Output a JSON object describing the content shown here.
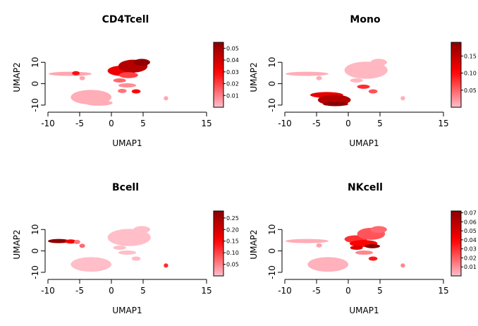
{
  "chart_data": [
    {
      "type": "scatter",
      "title": "CD4Tcell",
      "xlabel": "UMAP1",
      "ylabel": "UMAP2",
      "xlim": [
        -10,
        15
      ],
      "ylim": [
        -12,
        18
      ],
      "xticks": [
        "-10",
        "-5",
        "0",
        "5",
        "15"
      ],
      "xtick_values": [
        -10,
        -5,
        0,
        5,
        15
      ],
      "yticks": [
        "-10",
        "0",
        "10"
      ],
      "ytick_values": [
        -10,
        0,
        10
      ],
      "colorbar": {
        "min": 0,
        "max": 0.055,
        "ticks": [
          "0.01",
          "0.02",
          "0.03",
          "0.04",
          "0.05"
        ],
        "tick_values": [
          0.01,
          0.02,
          0.03,
          0.04,
          0.05
        ]
      },
      "color_low": "#ffc0cb",
      "color_high": "#8b0000",
      "clusters": [
        {
          "cx": -6.5,
          "cy": 4.6,
          "rx": 3.4,
          "ry": 0.6,
          "value": 0.004
        },
        {
          "cx": -5.6,
          "cy": 4.9,
          "rx": 0.6,
          "ry": 0.5,
          "value": 0.028
        },
        {
          "cx": -4.6,
          "cy": 2.6,
          "rx": 0.45,
          "ry": 0.45,
          "value": 0.004
        },
        {
          "cx": -3.2,
          "cy": -6.3,
          "rx": 3.2,
          "ry": 3.4,
          "value": 0.003
        },
        {
          "cx": -2.0,
          "cy": -9.0,
          "rx": 2.2,
          "ry": 1.3,
          "value": 0.003
        },
        {
          "cx": 1.6,
          "cy": 6.0,
          "rx": 2.2,
          "ry": 2.4,
          "value": 0.034
        },
        {
          "cx": 3.4,
          "cy": 8.2,
          "rx": 2.3,
          "ry": 3.0,
          "value": 0.046
        },
        {
          "cx": 4.8,
          "cy": 10.0,
          "rx": 1.3,
          "ry": 1.6,
          "value": 0.054
        },
        {
          "cx": 2.7,
          "cy": 4.0,
          "rx": 1.5,
          "ry": 1.4,
          "value": 0.02
        },
        {
          "cx": 1.3,
          "cy": 1.5,
          "rx": 1.0,
          "ry": 0.7,
          "value": 0.014
        },
        {
          "cx": 2.5,
          "cy": -0.8,
          "rx": 1.4,
          "ry": 0.7,
          "value": 0.008
        },
        {
          "cx": 1.7,
          "cy": -3.4,
          "rx": 0.7,
          "ry": 0.7,
          "value": 0.012
        },
        {
          "cx": 3.9,
          "cy": -3.6,
          "rx": 0.7,
          "ry": 0.7,
          "value": 0.03
        },
        {
          "cx": 8.6,
          "cy": -6.8,
          "rx": 0.35,
          "ry": 0.35,
          "value": 0.004
        }
      ]
    },
    {
      "type": "scatter",
      "title": "Mono",
      "xlabel": "UMAP1",
      "ylabel": "UMAP2",
      "xlim": [
        -10,
        15
      ],
      "ylim": [
        -12,
        18
      ],
      "xticks": [
        "-10",
        "-5",
        "0",
        "5",
        "15"
      ],
      "xtick_values": [
        -10,
        -5,
        0,
        5,
        15
      ],
      "yticks": [
        "-10",
        "0",
        "10"
      ],
      "ytick_values": [
        -10,
        0,
        10
      ],
      "colorbar": {
        "min": 0,
        "max": 0.19,
        "ticks": [
          "0.05",
          "0.10",
          "0.15"
        ],
        "tick_values": [
          0.05,
          0.1,
          0.15
        ]
      },
      "color_low": "#ffc0cb",
      "color_high": "#8b0000",
      "clusters": [
        {
          "cx": -6.5,
          "cy": 4.6,
          "rx": 3.4,
          "ry": 0.6,
          "value": 0.01
        },
        {
          "cx": -4.6,
          "cy": 2.6,
          "rx": 0.45,
          "ry": 0.45,
          "value": 0.01
        },
        {
          "cx": -3.4,
          "cy": -5.3,
          "rx": 2.6,
          "ry": 1.4,
          "value": 0.12
        },
        {
          "cx": -2.2,
          "cy": -7.6,
          "rx": 2.6,
          "ry": 2.4,
          "value": 0.16
        },
        {
          "cx": -2.0,
          "cy": -9.5,
          "rx": 2.0,
          "ry": 1.0,
          "value": 0.19
        },
        {
          "cx": 2.8,
          "cy": 6.3,
          "rx": 3.4,
          "ry": 4.0,
          "value": 0.005
        },
        {
          "cx": 4.8,
          "cy": 10.0,
          "rx": 1.3,
          "ry": 1.6,
          "value": 0.005
        },
        {
          "cx": 1.3,
          "cy": 1.5,
          "rx": 1.0,
          "ry": 0.7,
          "value": 0.005
        },
        {
          "cx": 2.4,
          "cy": -1.4,
          "rx": 1.0,
          "ry": 0.7,
          "value": 0.08
        },
        {
          "cx": 3.9,
          "cy": -3.6,
          "rx": 0.7,
          "ry": 0.7,
          "value": 0.06
        },
        {
          "cx": 8.6,
          "cy": -6.8,
          "rx": 0.35,
          "ry": 0.35,
          "value": 0.01
        }
      ]
    },
    {
      "type": "scatter",
      "title": "Bcell",
      "xlabel": "UMAP1",
      "ylabel": "UMAP2",
      "xlim": [
        -10,
        15
      ],
      "ylim": [
        -12,
        18
      ],
      "xticks": [
        "-10",
        "-5",
        "0",
        "5",
        "15"
      ],
      "xtick_values": [
        -10,
        -5,
        0,
        5,
        15
      ],
      "yticks": [
        "-10",
        "0",
        "10"
      ],
      "ytick_values": [
        -10,
        0,
        10
      ],
      "colorbar": {
        "min": 0,
        "max": 0.28,
        "ticks": [
          "0.05",
          "0.10",
          "0.15",
          "0.20",
          "0.25"
        ],
        "tick_values": [
          0.05,
          0.1,
          0.15,
          0.2,
          0.25
        ]
      },
      "color_low": "#ffc0cb",
      "color_high": "#8b0000",
      "clusters": [
        {
          "cx": -8.3,
          "cy": 4.6,
          "rx": 1.7,
          "ry": 0.7,
          "value": 0.28
        },
        {
          "cx": -6.4,
          "cy": 4.4,
          "rx": 0.9,
          "ry": 0.6,
          "value": 0.16
        },
        {
          "cx": -5.4,
          "cy": 4.2,
          "rx": 0.5,
          "ry": 0.5,
          "value": 0.06
        },
        {
          "cx": -4.6,
          "cy": 2.4,
          "rx": 0.45,
          "ry": 0.45,
          "value": 0.07
        },
        {
          "cx": -3.2,
          "cy": -6.3,
          "rx": 3.2,
          "ry": 3.4,
          "value": 0.002
        },
        {
          "cx": 2.8,
          "cy": 6.3,
          "rx": 3.4,
          "ry": 4.0,
          "value": 0.002
        },
        {
          "cx": 4.8,
          "cy": 10.0,
          "rx": 1.3,
          "ry": 1.6,
          "value": 0.002
        },
        {
          "cx": 1.3,
          "cy": 1.5,
          "rx": 1.0,
          "ry": 0.7,
          "value": 0.002
        },
        {
          "cx": 2.5,
          "cy": -0.8,
          "rx": 1.4,
          "ry": 0.7,
          "value": 0.002
        },
        {
          "cx": 3.9,
          "cy": -3.6,
          "rx": 0.7,
          "ry": 0.7,
          "value": 0.005
        },
        {
          "cx": 8.6,
          "cy": -6.8,
          "rx": 0.35,
          "ry": 0.35,
          "value": 0.12
        }
      ]
    },
    {
      "type": "scatter",
      "title": "NKcell",
      "xlabel": "UMAP1",
      "ylabel": "UMAP2",
      "xlim": [
        -10,
        15
      ],
      "ylim": [
        -12,
        18
      ],
      "xticks": [
        "-10",
        "-5",
        "0",
        "5",
        "15"
      ],
      "xtick_values": [
        -10,
        -5,
        0,
        5,
        15
      ],
      "yticks": [
        "-10",
        "0",
        "10"
      ],
      "ytick_values": [
        -10,
        0,
        10
      ],
      "colorbar": {
        "min": 0,
        "max": 0.072,
        "ticks": [
          "0.01",
          "0.02",
          "0.03",
          "0.04",
          "0.05",
          "0.06",
          "0.07"
        ],
        "tick_values": [
          0.01,
          0.02,
          0.03,
          0.04,
          0.05,
          0.06,
          0.07
        ]
      },
      "color_low": "#ffc0cb",
      "color_high": "#8b0000",
      "clusters": [
        {
          "cx": -6.5,
          "cy": 4.6,
          "rx": 3.4,
          "ry": 0.6,
          "value": 0.004
        },
        {
          "cx": -4.6,
          "cy": 2.6,
          "rx": 0.45,
          "ry": 0.45,
          "value": 0.006
        },
        {
          "cx": -3.2,
          "cy": -6.3,
          "rx": 3.2,
          "ry": 3.4,
          "value": 0.003
        },
        {
          "cx": 1.2,
          "cy": 5.5,
          "rx": 1.8,
          "ry": 1.8,
          "value": 0.03
        },
        {
          "cx": 3.6,
          "cy": 8.0,
          "rx": 2.2,
          "ry": 2.8,
          "value": 0.022
        },
        {
          "cx": 4.8,
          "cy": 10.0,
          "rx": 1.3,
          "ry": 1.6,
          "value": 0.018
        },
        {
          "cx": 2.4,
          "cy": 3.5,
          "rx": 2.2,
          "ry": 1.6,
          "value": 0.04
        },
        {
          "cx": 3.8,
          "cy": 2.2,
          "rx": 1.2,
          "ry": 0.9,
          "value": 0.072
        },
        {
          "cx": 1.3,
          "cy": 1.5,
          "rx": 1.0,
          "ry": 0.7,
          "value": 0.05
        },
        {
          "cx": 2.5,
          "cy": -0.8,
          "rx": 1.4,
          "ry": 0.7,
          "value": 0.012
        },
        {
          "cx": 3.9,
          "cy": -3.6,
          "rx": 0.7,
          "ry": 0.7,
          "value": 0.035
        },
        {
          "cx": 8.6,
          "cy": -6.8,
          "rx": 0.35,
          "ry": 0.35,
          "value": 0.012
        }
      ]
    }
  ]
}
